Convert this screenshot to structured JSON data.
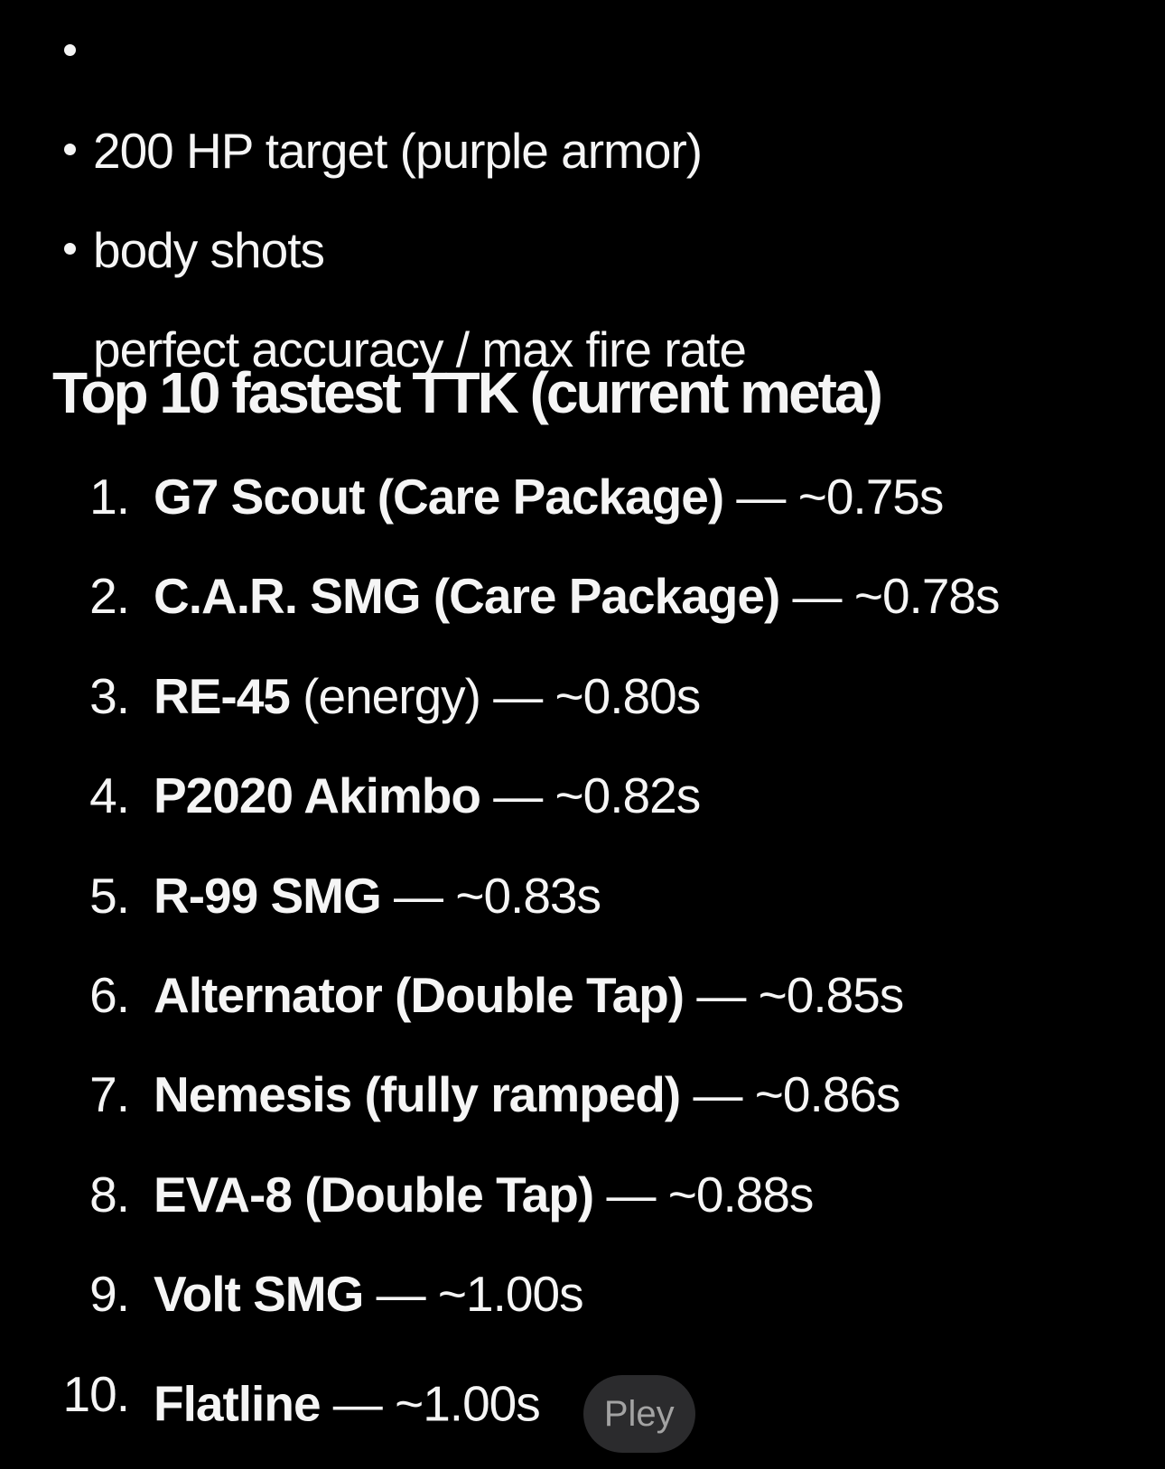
{
  "page": {
    "background": "#000000",
    "text_color": "#f5f5f5"
  },
  "bullets": [
    "200 HP target (purple armor)",
    "body shots",
    "perfect accuracy / max fire rate"
  ],
  "heading": "Top 10 fastest TTK (current meta)",
  "list": {
    "items": [
      {
        "number": "1.",
        "name": "G7 Scout (Care Package)",
        "detail": " — ~0.75s"
      },
      {
        "number": "2.",
        "name": "C.A.R. SMG (Care Package)",
        "detail": " — ~0.78s"
      },
      {
        "number": "3.",
        "name": "RE-45",
        "detail": " (energy) — ~0.80s"
      },
      {
        "number": "4.",
        "name": "P2020 Akimbo",
        "detail": " — ~0.82s"
      },
      {
        "number": "5.",
        "name": "R-99 SMG",
        "detail": " — ~0.83s"
      },
      {
        "number": "6.",
        "name": "Alternator (Double Tap)",
        "detail": " — ~0.85s"
      },
      {
        "number": "7.",
        "name": "Nemesis (fully ramped)",
        "detail": " — ~0.86s"
      },
      {
        "number": "8.",
        "name": "EVA-8 (Double Tap)",
        "detail": " — ~0.88s"
      },
      {
        "number": "9.",
        "name": "Volt SMG",
        "detail": " — ~1.00s"
      },
      {
        "number": "10.",
        "name": "Flatline",
        "detail": " — ~1.00s",
        "action_label": "Pley"
      }
    ]
  },
  "play_button": {
    "label": "Pley",
    "background": "#2b2b2d",
    "text_color": "#a3a3a3"
  }
}
